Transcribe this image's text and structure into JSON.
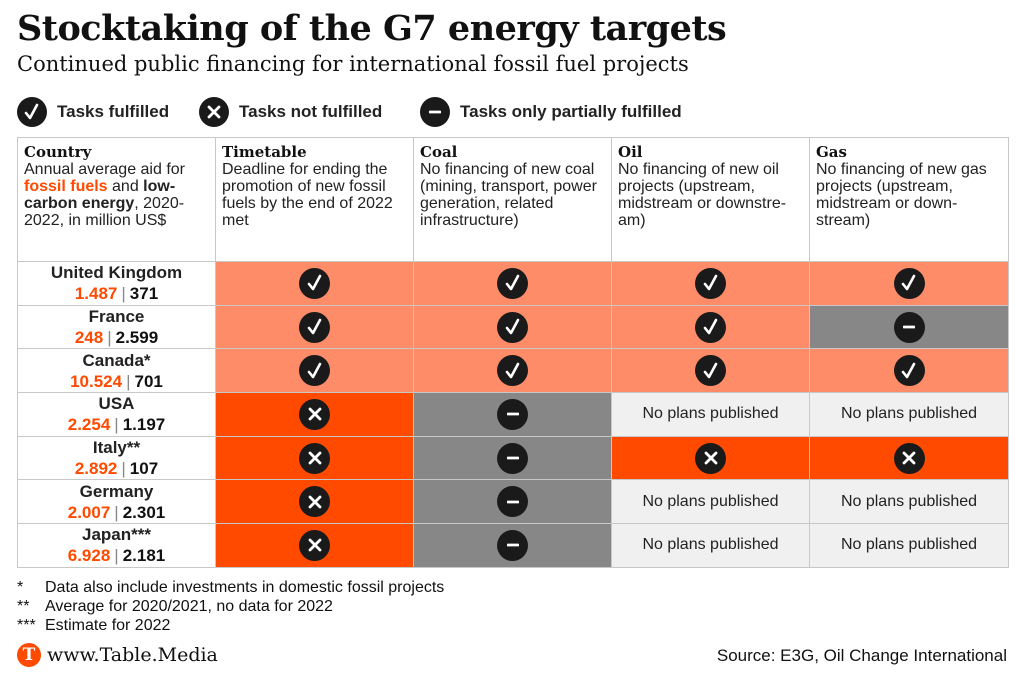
{
  "title": "Stocktaking of the G7 energy targets",
  "subtitle": "Continued public financing for international fossil fuel projects",
  "legend": {
    "fulfilled": "Tasks fulfilled",
    "not_fulfilled": "Tasks not fulfilled",
    "partial": "Tasks only partially fulfilled"
  },
  "headers": {
    "country": {
      "title": "Country",
      "pre": "Annual average aid for ",
      "fossil": "fossil fuels",
      "mid": " and ",
      "low": "low-carbon energy",
      "post": ", 2020-2022, in million US$"
    },
    "timetable": {
      "title": "Timetable",
      "desc": "Deadline for ending the promotion of new fossil fuels by the end of 2022 met"
    },
    "coal": {
      "title": "Coal",
      "desc": "No financing of new coal (mining, transport, power generation, related infrastructure)"
    },
    "oil": {
      "title": "Oil",
      "desc": "No financing of new oil projects (upstream, midstream or downstre-am)"
    },
    "gas": {
      "title": "Gas",
      "desc": "No financing of new gas projects (upstream, midstream or down-stream)"
    }
  },
  "colors": {
    "fulfilled": "#ff8c69",
    "not_fulfilled": "#ff4a00",
    "partial": "#878787",
    "no_plans": "#f0f0f0",
    "accent": "#ff4a00"
  },
  "chart_data": {
    "type": "table",
    "columns": [
      "Country",
      "Timetable",
      "Coal",
      "Oil",
      "Gas"
    ],
    "rows": [
      {
        "country": "United Kingdom",
        "fossil": "1.487",
        "low_carbon": "371",
        "timetable": "fulfilled",
        "coal": "fulfilled",
        "oil": "fulfilled",
        "gas": "fulfilled"
      },
      {
        "country": "France",
        "fossil": "248",
        "low_carbon": "2.599",
        "timetable": "fulfilled",
        "coal": "fulfilled",
        "oil": "fulfilled",
        "gas": "partial"
      },
      {
        "country": "Canada*",
        "fossil": "10.524",
        "low_carbon": "701",
        "timetable": "fulfilled",
        "coal": "fulfilled",
        "oil": "fulfilled",
        "gas": "fulfilled"
      },
      {
        "country": "USA",
        "fossil": "2.254",
        "low_carbon": "1.197",
        "timetable": "not_fulfilled",
        "coal": "partial",
        "oil": "no_plans",
        "gas": "no_plans"
      },
      {
        "country": "Italy**",
        "fossil": "2.892",
        "low_carbon": "107",
        "timetable": "not_fulfilled",
        "coal": "partial",
        "oil": "not_fulfilled",
        "gas": "not_fulfilled"
      },
      {
        "country": "Germany",
        "fossil": "2.007",
        "low_carbon": "2.301",
        "timetable": "not_fulfilled",
        "coal": "partial",
        "oil": "no_plans",
        "gas": "no_plans"
      },
      {
        "country": "Japan***",
        "fossil": "6.928",
        "low_carbon": "2.181",
        "timetable": "not_fulfilled",
        "coal": "partial",
        "oil": "no_plans",
        "gas": "no_plans"
      }
    ],
    "no_plans_label": "No plans published"
  },
  "notes": [
    {
      "mark": "*",
      "text": "Data also include investments in domestic fossil projects"
    },
    {
      "mark": "**",
      "text": "Average for 2020/2021, no data for 2022"
    },
    {
      "mark": "***",
      "text": "Estimate for 2022"
    }
  ],
  "brand": {
    "logo_letter": "T",
    "text": "www.Table.Media"
  },
  "source": "Source: E3G, Oil Change International"
}
